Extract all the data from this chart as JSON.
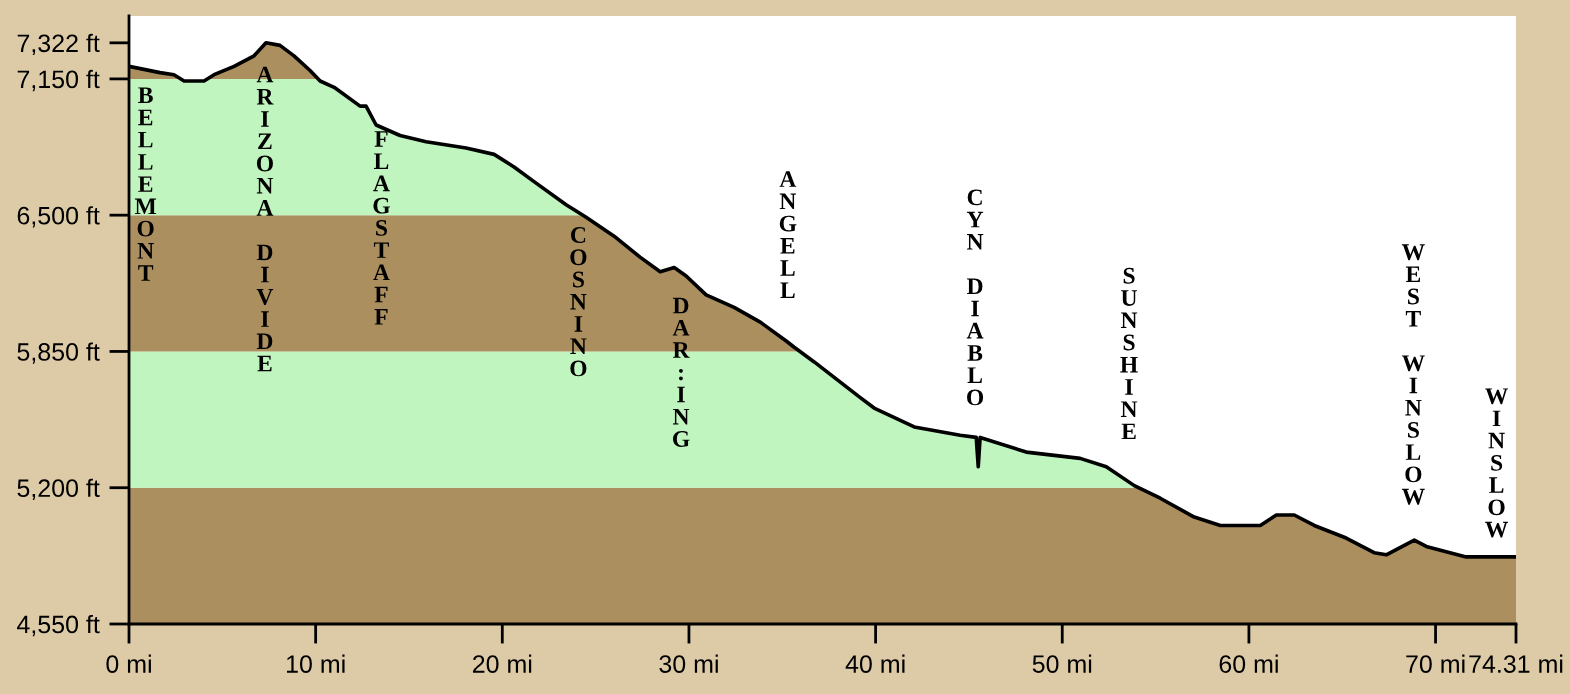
{
  "chart_data": {
    "type": "line",
    "x": [
      0,
      1.66,
      2.41,
      2.95,
      4.02,
      4.56,
      5.63,
      6.7,
      7.34,
      8.09,
      8.84,
      9.7,
      10.24,
      10.99,
      12.38,
      12.7,
      13.24,
      14.52,
      15.92,
      18.06,
      19.56,
      20.63,
      21.7,
      23.42,
      24.49,
      25.99,
      27.38,
      28.46,
      29.21,
      29.85,
      30.92,
      32.42,
      33.82,
      35.21,
      35.64,
      36.71,
      39.18,
      39.92,
      42.07,
      44.53,
      45.39,
      45.5,
      45.6,
      48.07,
      50.96,
      52.36,
      53.86,
      55.25,
      57.07,
      58.47,
      60.61,
      61.47,
      62.43,
      63.5,
      65.21,
      66.71,
      67.36,
      68.86,
      69.5,
      71.64,
      72.39,
      74.31
    ],
    "series": [
      {
        "color": "#000000",
        "values": [
          7210,
          7180,
          7170,
          7140,
          7140,
          7170,
          7210,
          7260,
          7322,
          7310,
          7260,
          7190,
          7140,
          7110,
          7020,
          7020,
          6930,
          6880,
          6850,
          6820,
          6790,
          6730,
          6660,
          6550,
          6490,
          6400,
          6300,
          6230,
          6250,
          6210,
          6120,
          6060,
          5990,
          5900,
          5870,
          5800,
          5630,
          5580,
          5490,
          5450,
          5440,
          5300,
          5440,
          5370,
          5340,
          5300,
          5210,
          5150,
          5060,
          5020,
          5020,
          5070,
          5070,
          5020,
          4960,
          4890,
          4880,
          4950,
          4920,
          4870,
          4870,
          4870
        ]
      }
    ],
    "bands": [
      {
        "axis": "y",
        "from": 4550,
        "to": 5200,
        "color": "#ab8f5e"
      },
      {
        "axis": "y",
        "from": 5200,
        "to": 5850,
        "color": "#c0f5c0"
      },
      {
        "axis": "y",
        "from": 5850,
        "to": 6500,
        "color": "#ab8f5e"
      },
      {
        "axis": "y",
        "from": 6500,
        "to": 7150,
        "color": "#c0f5c0"
      },
      {
        "axis": "y",
        "from": 7150,
        "to": 7450,
        "color": "#ab8f5e"
      }
    ],
    "xlim": [
      0,
      74.31
    ],
    "ylim": [
      4550,
      7450
    ],
    "xticks": [
      {
        "value": 0,
        "label": "0 mi"
      },
      {
        "value": 10,
        "label": "10 mi"
      },
      {
        "value": 20,
        "label": "20 mi"
      },
      {
        "value": 30,
        "label": "30 mi"
      },
      {
        "value": 40,
        "label": "40 mi"
      },
      {
        "value": 50,
        "label": "50 mi"
      },
      {
        "value": 60,
        "label": "60 mi"
      },
      {
        "value": 70,
        "label": "70 mi"
      },
      {
        "value": 74.31,
        "label": "74.31 mi"
      }
    ],
    "yticks": [
      {
        "value": 4550,
        "label": "4,550 ft"
      },
      {
        "value": 5200,
        "label": "5,200 ft"
      },
      {
        "value": 5850,
        "label": "5,850 ft"
      },
      {
        "value": 6500,
        "label": "6,500 ft"
      },
      {
        "value": 7150,
        "label": "7,150 ft"
      },
      {
        "value": 7322,
        "label": "7,322 ft"
      }
    ],
    "grid": false,
    "legend": false,
    "annotations": [
      "BELLEMONT",
      "ARIZONA DIVIDE",
      "FLAGSTAFF",
      "COSNINO",
      "DAR:ING",
      "ANGELL",
      "CYN DIABLO",
      "SUNSHINE",
      "WEST WINSLOW",
      "WINSLOW"
    ]
  }
}
